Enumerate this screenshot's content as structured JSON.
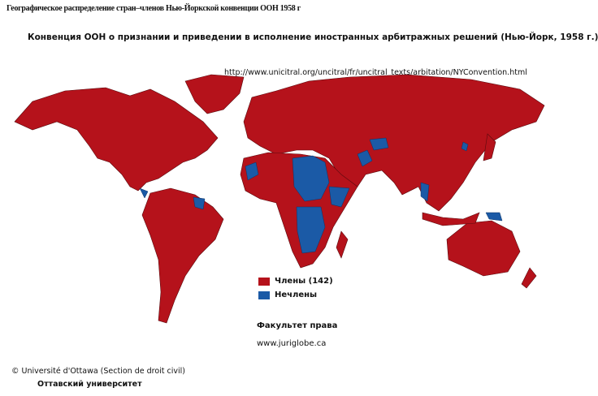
{
  "header": {
    "top_caption": "Географическое распределение стран–членов Нью-Йоркской конвенции ООН 1958 г",
    "title": "Конвенция ООН о признании и приведении в исполнение иностранных арбитражных решений (Нью-Йорк, 1958 г.)",
    "source_url": "http://www.unicitral.org/uncitral/fr/uncitral_texts/arbitation/NYConvention.html"
  },
  "legend": {
    "items": [
      {
        "label": "Члены (142)",
        "color": "#b5121b"
      },
      {
        "label": "Нечлены",
        "color": "#1b5aa6"
      }
    ]
  },
  "footer": {
    "faculty": "Факультет права",
    "website": "www.juriglobe.ca",
    "copyright": "© Université d'Ottawa (Section de droit civil)",
    "university": "Оттавский университет"
  },
  "colors": {
    "member": "#b5121b",
    "non_member": "#1b5aa6",
    "border": "#5a0a0e"
  }
}
